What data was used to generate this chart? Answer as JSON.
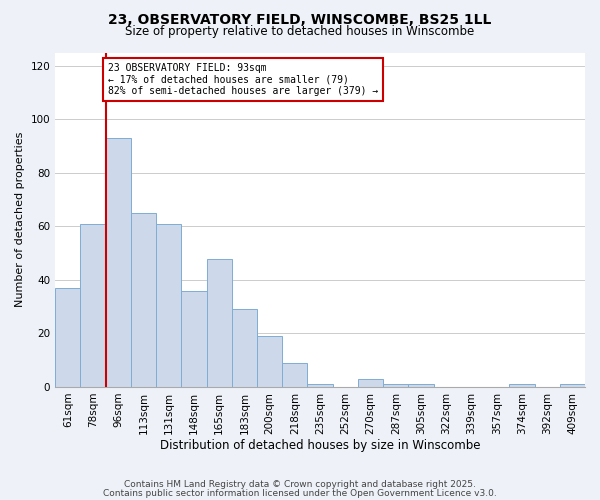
{
  "title": "23, OBSERVATORY FIELD, WINSCOMBE, BS25 1LL",
  "subtitle": "Size of property relative to detached houses in Winscombe",
  "xlabel": "Distribution of detached houses by size in Winscombe",
  "ylabel": "Number of detached properties",
  "categories": [
    "61sqm",
    "78sqm",
    "96sqm",
    "113sqm",
    "131sqm",
    "148sqm",
    "165sqm",
    "183sqm",
    "200sqm",
    "218sqm",
    "235sqm",
    "252sqm",
    "270sqm",
    "287sqm",
    "305sqm",
    "322sqm",
    "339sqm",
    "357sqm",
    "374sqm",
    "392sqm",
    "409sqm"
  ],
  "values": [
    37,
    61,
    93,
    65,
    61,
    36,
    48,
    29,
    19,
    9,
    1,
    0,
    3,
    1,
    1,
    0,
    0,
    0,
    1,
    0,
    1
  ],
  "bar_color": "#cdd9ea",
  "bar_edge_color": "#7eadd4",
  "reference_line_index": 2,
  "reference_line_color": "#cc0000",
  "annotation_line1": "23 OBSERVATORY FIELD: 93sqm",
  "annotation_line2": "← 17% of detached houses are smaller (79)",
  "annotation_line3": "82% of semi-detached houses are larger (379) →",
  "annotation_box_edge_color": "#cc0000",
  "annotation_box_face_color": "#ffffff",
  "ylim": [
    0,
    125
  ],
  "yticks": [
    0,
    20,
    40,
    60,
    80,
    100,
    120
  ],
  "footnote1": "Contains HM Land Registry data © Crown copyright and database right 2025.",
  "footnote2": "Contains public sector information licensed under the Open Government Licence v3.0.",
  "background_color": "#eef2f8",
  "plot_background_color": "#ffffff",
  "title_fontsize": 10,
  "subtitle_fontsize": 8.5,
  "ylabel_fontsize": 8,
  "xlabel_fontsize": 8.5,
  "tick_fontsize": 7.5,
  "footnote_fontsize": 6.5
}
